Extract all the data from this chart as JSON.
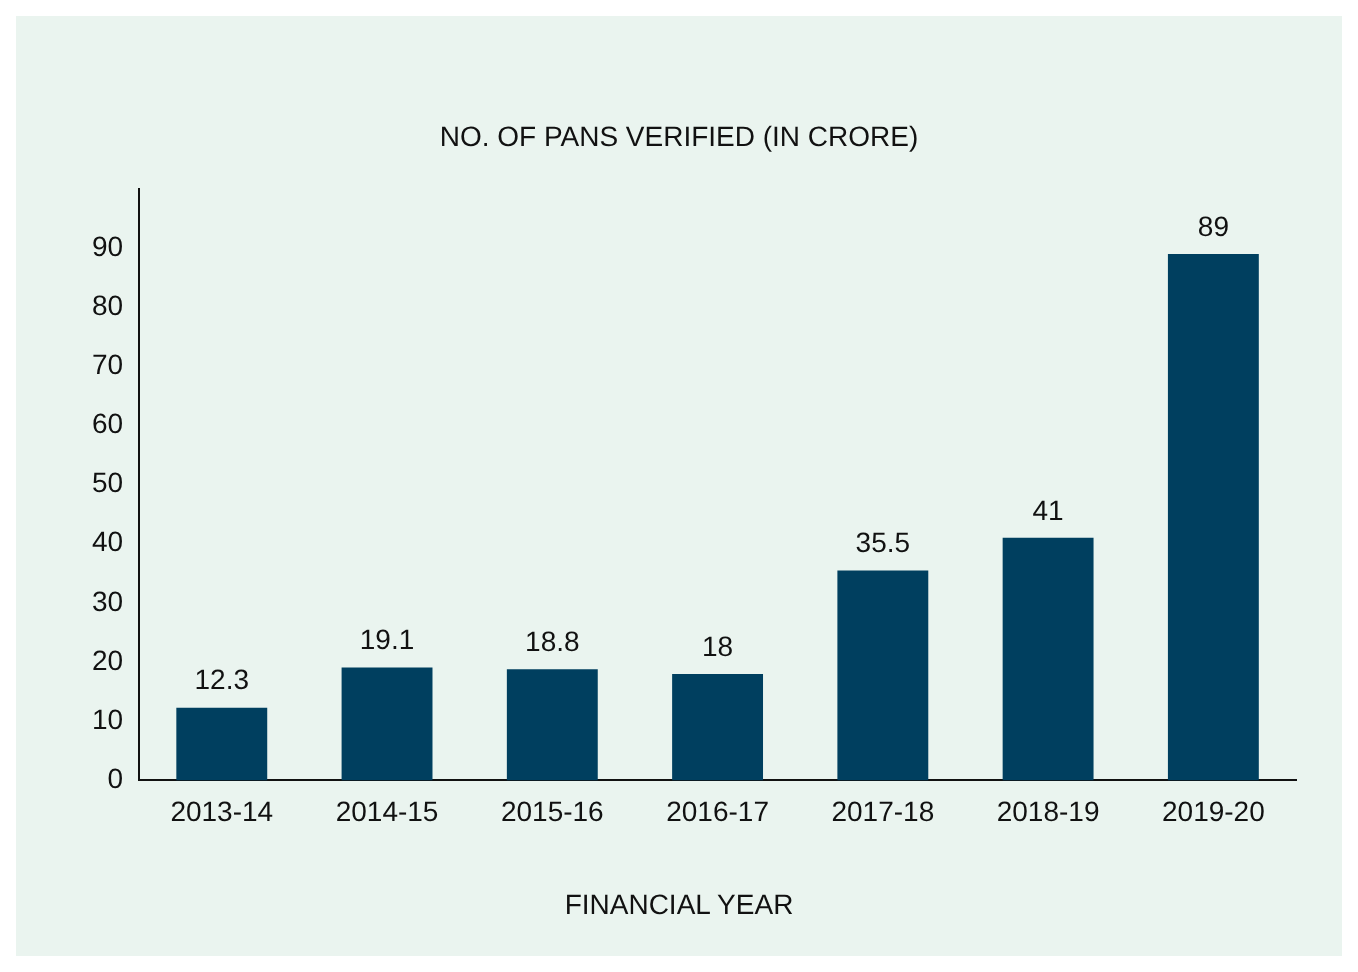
{
  "chart_data": {
    "type": "bar",
    "title": "NO. OF PANS VERIFIED (IN CRORE)",
    "xlabel": "FINANCIAL YEAR",
    "categories": [
      "2013-14",
      "2014-15",
      "2015-16",
      "2016-17",
      "2017-18",
      "2018-19",
      "2019-20"
    ],
    "values": [
      12.3,
      19.1,
      18.8,
      18,
      35.5,
      41,
      89
    ],
    "color": "#003f5f",
    "ylim": [
      0,
      100
    ],
    "yticks": [
      0,
      10,
      20,
      30,
      40,
      50,
      60,
      70,
      80,
      90
    ],
    "grid": false,
    "data_labels": true
  }
}
